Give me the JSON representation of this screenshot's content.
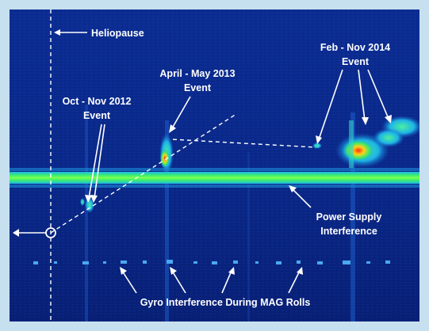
{
  "labels": {
    "heliopause": "Heliopause",
    "event_2012_line1": "Oct - Nov 2012",
    "event_2012_line2": "Event",
    "event_2013_line1": "April - May 2013",
    "event_2013_line2": "Event",
    "event_2014_line1": "Feb - Nov 2014",
    "event_2014_line2": "Event",
    "power_line1": "Power Supply",
    "power_line2": "Interference",
    "gyro": "Gyro Interference During MAG Rolls"
  },
  "colors": {
    "frame": "#c7e0ef",
    "background": "#0a2a8c",
    "band": "#27e36a",
    "hot": "#ff3a1a",
    "annotation": "#ffffff"
  }
}
